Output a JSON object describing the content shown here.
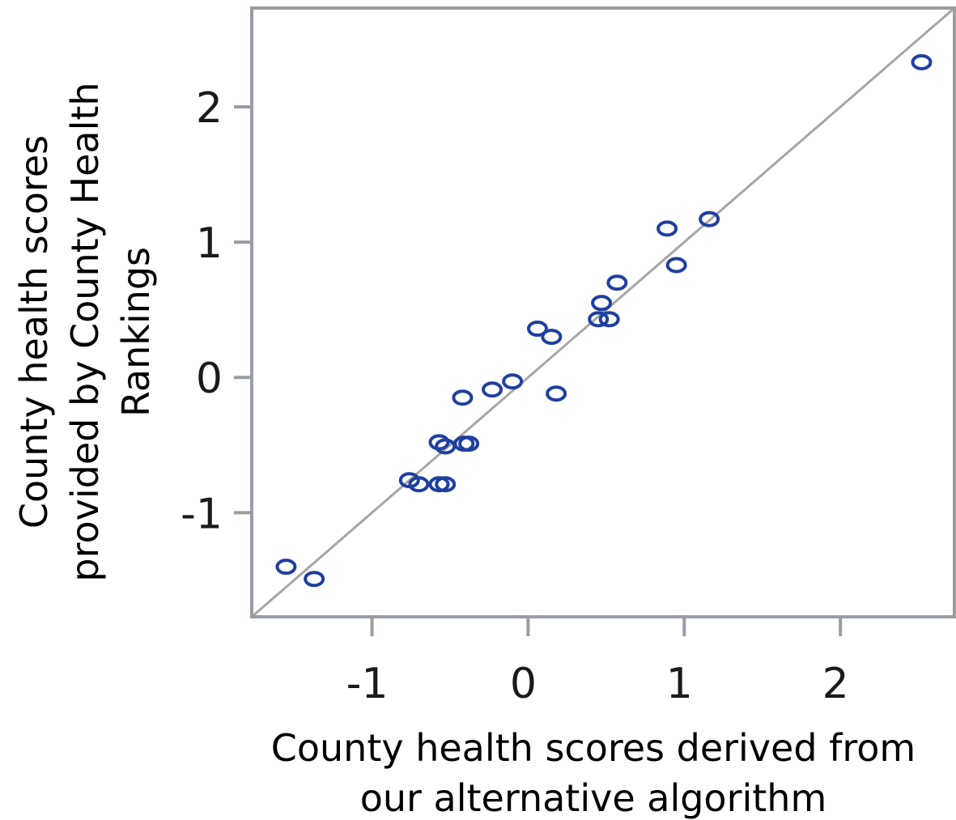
{
  "chart_data": {
    "type": "scatter",
    "title": "",
    "xlabel_lines": [
      "County health scores derived from",
      "our alternative algorithm"
    ],
    "ylabel_lines": [
      "County health scores",
      "provided by County Health",
      "Rankings"
    ],
    "xlim": [
      -1.77,
      2.73
    ],
    "ylim": [
      -1.77,
      2.73
    ],
    "xticks": [
      -1,
      0,
      1,
      2
    ],
    "xtick_labels": [
      "-1",
      "0",
      "1",
      "2"
    ],
    "yticks": [
      -1,
      0,
      1,
      2
    ],
    "ytick_labels": [
      "-1",
      "0",
      "1",
      "2"
    ],
    "reference_line": "y = x",
    "grid": false,
    "legend": "none",
    "marker_color": "#1f3f9f",
    "line_color": "#a6a6a6",
    "frame_color": "#999da3",
    "points": [
      {
        "x": -1.55,
        "y": -1.4
      },
      {
        "x": -1.37,
        "y": -1.49
      },
      {
        "x": -0.76,
        "y": -0.76
      },
      {
        "x": -0.7,
        "y": -0.79
      },
      {
        "x": -0.57,
        "y": -0.79
      },
      {
        "x": -0.53,
        "y": -0.79
      },
      {
        "x": -0.57,
        "y": -0.48
      },
      {
        "x": -0.53,
        "y": -0.51
      },
      {
        "x": -0.41,
        "y": -0.49
      },
      {
        "x": -0.38,
        "y": -0.49
      },
      {
        "x": -0.42,
        "y": -0.15
      },
      {
        "x": -0.23,
        "y": -0.09
      },
      {
        "x": -0.1,
        "y": -0.03
      },
      {
        "x": 0.06,
        "y": 0.36
      },
      {
        "x": 0.15,
        "y": 0.3
      },
      {
        "x": 0.18,
        "y": -0.12
      },
      {
        "x": 0.45,
        "y": 0.43
      },
      {
        "x": 0.47,
        "y": 0.55
      },
      {
        "x": 0.52,
        "y": 0.43
      },
      {
        "x": 0.57,
        "y": 0.7
      },
      {
        "x": 0.89,
        "y": 1.1
      },
      {
        "x": 0.95,
        "y": 0.83
      },
      {
        "x": 1.16,
        "y": 1.17
      },
      {
        "x": 2.52,
        "y": 2.33
      }
    ]
  }
}
